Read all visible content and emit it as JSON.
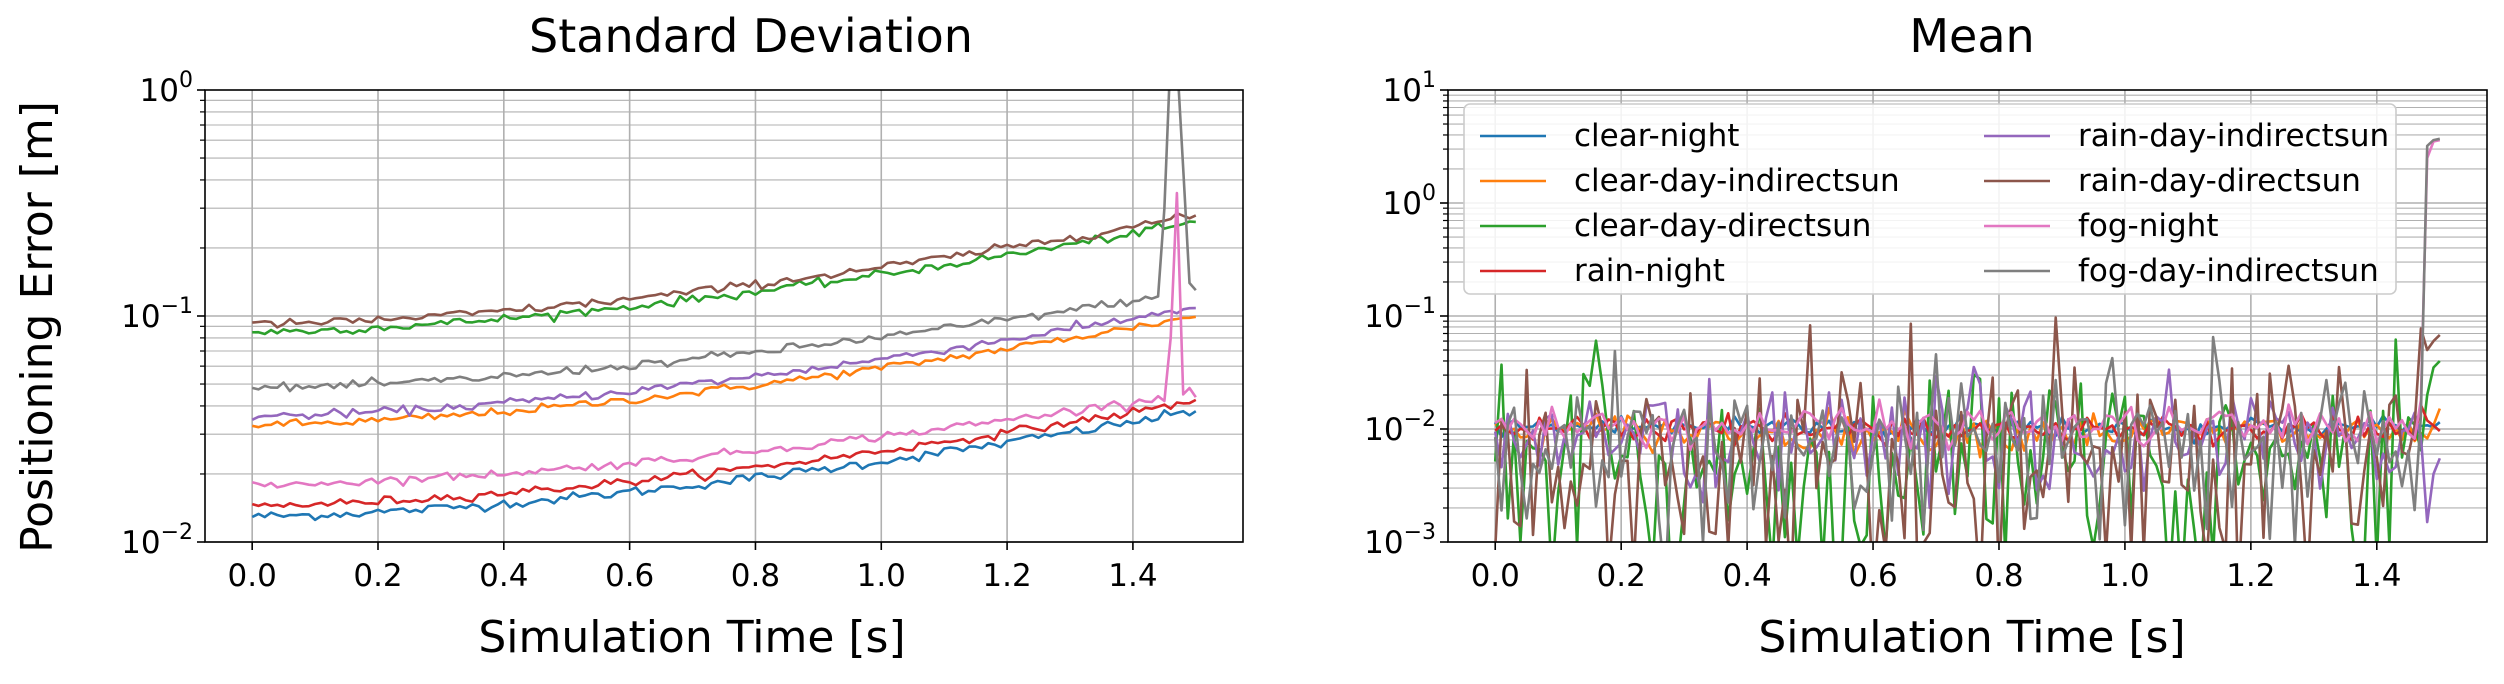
{
  "figure": {
    "ylabel": "Positioning Error [m]"
  },
  "chart_data": [
    {
      "type": "line",
      "title": "Standard Deviation",
      "xlabel": "Simulation Time [s]",
      "ylabel": "Positioning Error [m]",
      "xlim": [
        -0.075,
        1.575
      ],
      "ylim": [
        0.01,
        1
      ],
      "yscale": "log",
      "xticks": [
        "0.0",
        "0.2",
        "0.4",
        "0.6",
        "0.8",
        "1.0",
        "1.2",
        "1.4"
      ],
      "yticks": [
        {
          "base": "10",
          "exp": "−2",
          "value": 0.01
        },
        {
          "base": "10",
          "exp": "−1",
          "value": 0.1
        },
        {
          "base": "10",
          "exp": "0",
          "value": 1
        }
      ],
      "grid": true,
      "legend": "none",
      "x_range": [
        0.0,
        1.5
      ],
      "samples": 151,
      "series": [
        {
          "name": "clear-night",
          "color": "#1f77b4",
          "start": 0.013,
          "end": 0.038,
          "noise": 0.025
        },
        {
          "name": "clear-day-indirectsun",
          "color": "#ff7f0e",
          "start": 0.033,
          "end": 0.1,
          "noise": 0.022
        },
        {
          "name": "clear-day-directsun",
          "color": "#2ca02c",
          "start": 0.085,
          "end": 0.26,
          "noise": 0.022
        },
        {
          "name": "rain-night",
          "color": "#d62728",
          "start": 0.0145,
          "end": 0.042,
          "noise": 0.022
        },
        {
          "name": "rain-day-indirectsun",
          "color": "#9467bd",
          "start": 0.036,
          "end": 0.11,
          "noise": 0.022
        },
        {
          "name": "rain-day-directsun",
          "color": "#8c564b",
          "start": 0.092,
          "end": 0.28,
          "noise": 0.022
        },
        {
          "name": "fog-night",
          "color": "#e377c2",
          "start": 0.018,
          "end": 0.046,
          "noise": 0.022,
          "spike": {
            "at": [
              1.46,
              1.47,
              1.48,
              1.49
            ],
            "values": [
              0.08,
              0.35,
              0.045,
              0.048
            ]
          }
        },
        {
          "name": "fog-day-indirectsun",
          "color": "#7f7f7f",
          "start": 0.048,
          "end": 0.13,
          "noise": 0.022,
          "spike": {
            "at": [
              1.45,
              1.46,
              1.47,
              1.48,
              1.49,
              1.5
            ],
            "values": [
              0.3,
              1.5,
              1.4,
              0.45,
              0.14,
              0.13
            ]
          }
        }
      ]
    },
    {
      "type": "line",
      "title": "Mean",
      "xlabel": "Simulation Time [s]",
      "xlim": [
        -0.075,
        1.575
      ],
      "ylim": [
        0.001,
        10
      ],
      "yscale": "log",
      "xticks": [
        "0.0",
        "0.2",
        "0.4",
        "0.6",
        "0.8",
        "1.0",
        "1.2",
        "1.4"
      ],
      "yticks": [
        {
          "base": "10",
          "exp": "−3",
          "value": 0.001
        },
        {
          "base": "10",
          "exp": "−2",
          "value": 0.01
        },
        {
          "base": "10",
          "exp": "−1",
          "value": 0.1
        },
        {
          "base": "10",
          "exp": "0",
          "value": 1
        },
        {
          "base": "10",
          "exp": "1",
          "value": 10
        }
      ],
      "grid": true,
      "legend": "top-left, 2 columns",
      "x_range": [
        0.0,
        1.5
      ],
      "samples": 151,
      "series": [
        {
          "name": "clear-night",
          "color": "#1f77b4",
          "base": 0.0105,
          "noise": 0.06
        },
        {
          "name": "clear-day-indirectsun",
          "color": "#ff7f0e",
          "base": 0.0095,
          "noise": 0.1
        },
        {
          "name": "clear-day-directsun",
          "color": "#2ca02c",
          "base": 0.0045,
          "noise": 0.55,
          "end_values": [
            0.02,
            0.035,
            0.04
          ]
        },
        {
          "name": "rain-night",
          "color": "#d62728",
          "base": 0.01,
          "noise": 0.07
        },
        {
          "name": "rain-day-indirectsun",
          "color": "#9467bd",
          "base": 0.008,
          "noise": 0.3,
          "end_values": [
            0.0015,
            0.004,
            0.0055
          ]
        },
        {
          "name": "rain-day-directsun",
          "color": "#8c564b",
          "base": 0.0055,
          "noise": 0.55,
          "end_values": [
            0.05,
            0.06,
            0.068
          ]
        },
        {
          "name": "fog-night",
          "color": "#e377c2",
          "base": 0.0105,
          "noise": 0.1,
          "end_values": [
            2.5,
            3.5,
            3.6
          ]
        },
        {
          "name": "fog-day-indirectsun",
          "color": "#7f7f7f",
          "base": 0.0085,
          "noise": 0.35,
          "end_values": [
            3.2,
            3.6,
            3.7
          ]
        }
      ]
    }
  ]
}
